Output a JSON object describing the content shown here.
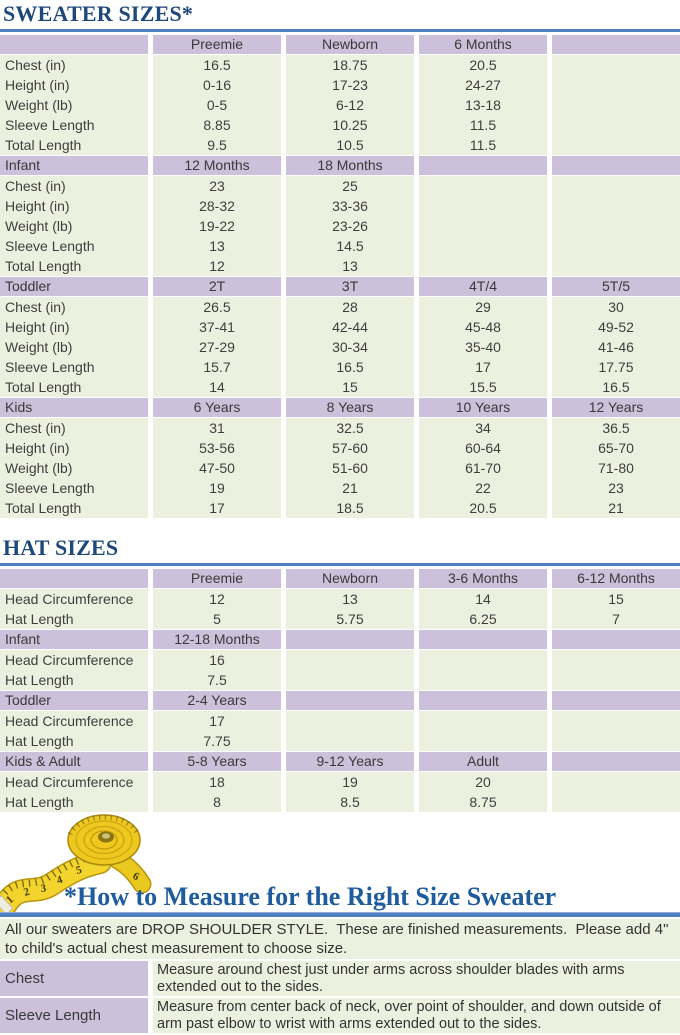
{
  "titles": {
    "sweater": "SWEATER SIZES*",
    "hat": "HAT SIZES"
  },
  "colors": {
    "section_header_bg": "#CCC0DA",
    "row_bg": "#EBF1DE",
    "accent_line": "#4E81BD",
    "title_text": "#1E4878",
    "heading_text": "#1F5C9E",
    "tape_yellow": "#F3D42C"
  },
  "images": {
    "tape": "measuring-tape"
  },
  "sweater_table": {
    "row_labels": [
      "Chest (in)",
      "Height (in)",
      "Weight (lb)",
      "Sleeve Length",
      "Total Length"
    ],
    "sections": [
      {
        "name": "",
        "sizes": [
          "Preemie",
          "Newborn",
          "6 Months",
          ""
        ],
        "rows": [
          [
            "16.5",
            "18.75",
            "20.5",
            ""
          ],
          [
            "0-16",
            "17-23",
            "24-27",
            ""
          ],
          [
            "0-5",
            "6-12",
            "13-18",
            ""
          ],
          [
            "8.85",
            "10.25",
            "11.5",
            ""
          ],
          [
            "9.5",
            "10.5",
            "11.5",
            ""
          ]
        ]
      },
      {
        "name": "Infant",
        "sizes": [
          "12 Months",
          "18 Months",
          "",
          ""
        ],
        "rows": [
          [
            "23",
            "25",
            "",
            ""
          ],
          [
            "28-32",
            "33-36",
            "",
            ""
          ],
          [
            "19-22",
            "23-26",
            "",
            ""
          ],
          [
            "13",
            "14.5",
            "",
            ""
          ],
          [
            "12",
            "13",
            "",
            ""
          ]
        ]
      },
      {
        "name": "Toddler",
        "sizes": [
          "2T",
          "3T",
          "4T/4",
          "5T/5"
        ],
        "rows": [
          [
            "26.5",
            "28",
            "29",
            "30"
          ],
          [
            "37-41",
            "42-44",
            "45-48",
            "49-52"
          ],
          [
            "27-29",
            "30-34",
            "35-40",
            "41-46"
          ],
          [
            "15.7",
            "16.5",
            "17",
            "17.75"
          ],
          [
            "14",
            "15",
            "15.5",
            "16.5"
          ]
        ]
      },
      {
        "name": "Kids",
        "sizes": [
          "6 Years",
          "8 Years",
          "10 Years",
          "12 Years"
        ],
        "rows": [
          [
            "31",
            "32.5",
            "34",
            "36.5"
          ],
          [
            "53-56",
            "57-60",
            "60-64",
            "65-70"
          ],
          [
            "47-50",
            "51-60",
            "61-70",
            "71-80"
          ],
          [
            "19",
            "21",
            "22",
            "23"
          ],
          [
            "17",
            "18.5",
            "20.5",
            "21"
          ]
        ]
      }
    ]
  },
  "hat_table": {
    "row_labels": [
      "Head Circumference",
      "Hat Length"
    ],
    "sections": [
      {
        "name": "",
        "sizes": [
          "Preemie",
          "Newborn",
          "3-6 Months",
          "6-12 Months"
        ],
        "rows": [
          [
            "12",
            "13",
            "14",
            "15"
          ],
          [
            "5",
            "5.75",
            "6.25",
            "7"
          ]
        ]
      },
      {
        "name": "Infant",
        "sizes": [
          "12-18 Months",
          "",
          "",
          ""
        ],
        "rows": [
          [
            "16",
            "",
            "",
            ""
          ],
          [
            "7.5",
            "",
            "",
            ""
          ]
        ]
      },
      {
        "name": "Toddler",
        "sizes": [
          "2-4 Years",
          "",
          "",
          ""
        ],
        "rows": [
          [
            "17",
            "",
            "",
            ""
          ],
          [
            "7.75",
            "",
            "",
            ""
          ]
        ]
      },
      {
        "name": "Kids & Adult",
        "sizes": [
          "5-8 Years",
          "9-12 Years",
          "Adult",
          ""
        ],
        "rows": [
          [
            "18",
            "19",
            "20",
            ""
          ],
          [
            "8",
            "8.5",
            "8.75",
            ""
          ]
        ]
      }
    ]
  },
  "measure": {
    "heading": "*How to Measure for the Right Size Sweater",
    "intro": "All our sweaters are DROP SHOULDER STYLE.  These are finished measurements.  Please add 4\" to child's actual chest measurement to choose size.",
    "rows": [
      {
        "label": "Chest",
        "text": "Measure around chest just under arms across shoulder blades with arms extended out to the sides."
      },
      {
        "label": "Sleeve Length",
        "text": "Measure from center back of neck, over point of shoulder, and down outside of arm past elbow to wrist with arms extended out to the sides."
      }
    ]
  }
}
